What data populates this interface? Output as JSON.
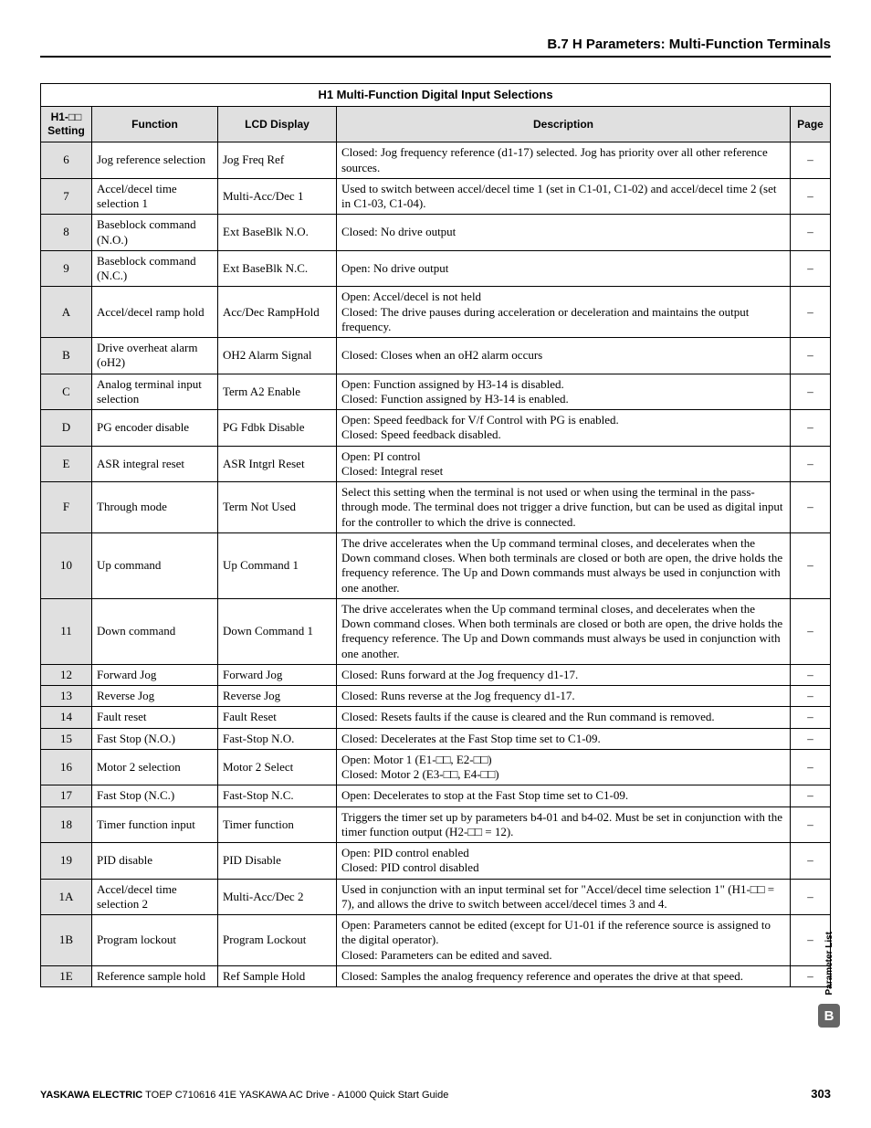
{
  "section_title": "B.7 H Parameters: Multi-Function Terminals",
  "table_title": "H1 Multi-Function Digital Input Selections",
  "headers": {
    "setting": "H1-□□ Setting",
    "function": "Function",
    "lcd": "LCD Display",
    "description": "Description",
    "page": "Page"
  },
  "rows": [
    {
      "s": "6",
      "f": "Jog reference selection",
      "l": "Jog Freq Ref",
      "d": "Closed: Jog frequency reference (d1-17) selected. Jog has priority over all other reference sources.",
      "p": "–"
    },
    {
      "s": "7",
      "f": "Accel/decel time selection 1",
      "l": "Multi-Acc/Dec 1",
      "d": "Used to switch between accel/decel time 1 (set in C1-01, C1-02) and accel/decel time 2 (set in C1-03, C1-04).",
      "p": "–"
    },
    {
      "s": "8",
      "f": "Baseblock command (N.O.)",
      "l": "Ext BaseBlk N.O.",
      "d": "Closed: No drive output",
      "p": "–"
    },
    {
      "s": "9",
      "f": "Baseblock command (N.C.)",
      "l": "Ext BaseBlk N.C.",
      "d": "Open: No drive output",
      "p": "–"
    },
    {
      "s": "A",
      "f": "Accel/decel ramp hold",
      "l": "Acc/Dec RampHold",
      "d": "Open: Accel/decel is not held\nClosed: The drive pauses during acceleration or deceleration and maintains the output frequency.",
      "p": "–"
    },
    {
      "s": "B",
      "f": "Drive overheat alarm (oH2)",
      "l": "OH2 Alarm Signal",
      "d": "Closed: Closes when an oH2 alarm occurs",
      "p": "–"
    },
    {
      "s": "C",
      "f": "Analog terminal input selection",
      "l": "Term A2 Enable",
      "d": "Open: Function assigned by H3-14 is disabled.\nClosed: Function assigned by H3-14 is enabled.",
      "p": "–"
    },
    {
      "s": "D",
      "f": "PG encoder disable",
      "l": "PG Fdbk Disable",
      "d": "Open: Speed feedback for V/f Control with PG is enabled.\nClosed: Speed feedback disabled.",
      "p": "–"
    },
    {
      "s": "E",
      "f": "ASR integral reset",
      "l": "ASR Intgrl Reset",
      "d": "Open: PI control\nClosed: Integral reset",
      "p": "–"
    },
    {
      "s": "F",
      "f": "Through mode",
      "l": "Term Not Used",
      "d": "Select this setting when the terminal is not used or when using the terminal in the pass-through mode. The terminal does not trigger a drive function, but can be used as digital input for the controller to which the drive is connected.",
      "p": "–"
    },
    {
      "s": "10",
      "f": "Up command",
      "l": "Up Command 1",
      "d": "The drive accelerates when the Up command terminal closes, and decelerates when the Down command closes. When both terminals are closed or both are open, the drive holds the frequency reference. The Up and Down commands must always be used in conjunction with one another.",
      "p": "–"
    },
    {
      "s": "11",
      "f": "Down command",
      "l": "Down Command 1",
      "d": "The drive accelerates when the Up command terminal closes, and decelerates when the Down command closes. When both terminals are closed or both are open, the drive holds the frequency reference. The Up and Down commands must always be used in conjunction with one another.",
      "p": "–"
    },
    {
      "s": "12",
      "f": "Forward Jog",
      "l": "Forward Jog",
      "d": "Closed: Runs forward at the Jog frequency d1-17.",
      "p": "–"
    },
    {
      "s": "13",
      "f": "Reverse Jog",
      "l": "Reverse Jog",
      "d": "Closed: Runs reverse at the Jog frequency d1-17.",
      "p": "–"
    },
    {
      "s": "14",
      "f": "Fault reset",
      "l": "Fault Reset",
      "d": "Closed: Resets faults if the cause is cleared and the Run command is removed.",
      "p": "–"
    },
    {
      "s": "15",
      "f": "Fast Stop (N.O.)",
      "l": "Fast-Stop N.O.",
      "d": "Closed: Decelerates at the Fast Stop time set to C1-09.",
      "p": "–"
    },
    {
      "s": "16",
      "f": "Motor 2 selection",
      "l": "Motor 2 Select",
      "d": "Open: Motor 1 (E1-□□, E2-□□)\nClosed: Motor 2 (E3-□□, E4-□□)",
      "p": "–"
    },
    {
      "s": "17",
      "f": "Fast Stop (N.C.)",
      "l": "Fast-Stop N.C.",
      "d": "Open: Decelerates to stop at the Fast Stop time set to C1-09.",
      "p": "–"
    },
    {
      "s": "18",
      "f": "Timer function input",
      "l": "Timer function",
      "d": "Triggers the timer set up by parameters b4-01 and b4-02. Must be set in conjunction with the timer function output (H2-□□ = 12).",
      "p": "–"
    },
    {
      "s": "19",
      "f": "PID disable",
      "l": "PID Disable",
      "d": "Open: PID control enabled\nClosed: PID control disabled",
      "p": "–"
    },
    {
      "s": "1A",
      "f": "Accel/decel time selection 2",
      "l": "Multi-Acc/Dec 2",
      "d": "Used in conjunction with an input terminal set for \"Accel/decel time selection 1\" (H1-□□ = 7), and allows the drive to switch between accel/decel times 3 and 4.",
      "p": "–"
    },
    {
      "s": "1B",
      "f": "Program lockout",
      "l": "Program Lockout",
      "d": "Open: Parameters cannot be edited (except for U1-01 if the reference source is assigned to the digital operator).\nClosed: Parameters can be edited and saved.",
      "p": "–"
    },
    {
      "s": "1E",
      "f": "Reference sample hold",
      "l": "Ref Sample Hold",
      "d": "Closed: Samples the analog frequency reference and operates the drive at that speed.",
      "p": "–"
    }
  ],
  "footer": {
    "brand": "YASKAWA ELECTRIC",
    "rest": " TOEP C710616 41E YASKAWA AC Drive - A1000 Quick Start Guide",
    "page": "303"
  },
  "side": {
    "label": "Parameter List",
    "letter": "B"
  }
}
